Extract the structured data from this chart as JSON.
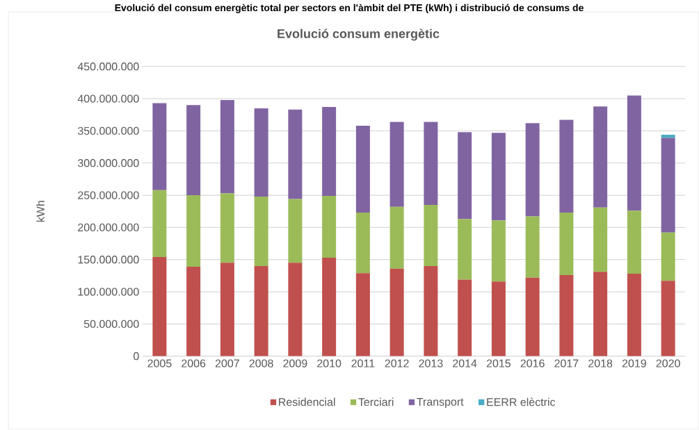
{
  "chart_data": {
    "type": "bar",
    "stacked": true,
    "title": "Evolució consum energètic",
    "ylabel": "kWh",
    "annotations": [
      "Evolució del consum energètic total per sectors en l'àmbit del PTE (kWh) i distribució de consums de"
    ],
    "categories": [
      "2005",
      "2006",
      "2007",
      "2008",
      "2009",
      "2010",
      "2011",
      "2012",
      "2013",
      "2014",
      "2015",
      "2016",
      "2017",
      "2018",
      "2019",
      "2020"
    ],
    "series": [
      {
        "name": "Residencial",
        "color": "#c0504d",
        "values": [
          154000000,
          139000000,
          145000000,
          140000000,
          145000000,
          153000000,
          129000000,
          136000000,
          140000000,
          119000000,
          116000000,
          122000000,
          126000000,
          131000000,
          128000000,
          117000000
        ]
      },
      {
        "name": "Terciari",
        "color": "#9bbb59",
        "values": [
          104000000,
          111000000,
          108000000,
          108000000,
          99000000,
          96000000,
          94000000,
          96000000,
          95000000,
          94000000,
          95000000,
          95000000,
          97000000,
          100000000,
          98000000,
          75000000
        ]
      },
      {
        "name": "Transport",
        "color": "#8064a2",
        "values": [
          135000000,
          140000000,
          145000000,
          137000000,
          139000000,
          138000000,
          135000000,
          132000000,
          129000000,
          135000000,
          136000000,
          145000000,
          144000000,
          157000000,
          179000000,
          147000000
        ]
      },
      {
        "name": "EERR elèctric",
        "color": "#4bacc6",
        "values": [
          null,
          null,
          null,
          null,
          null,
          null,
          null,
          null,
          null,
          null,
          null,
          null,
          null,
          null,
          null,
          5000000
        ]
      }
    ],
    "ylim": [
      0,
      450000000
    ],
    "yticks": [
      0,
      {
        "value": 50000000,
        "label": "50.000.000"
      },
      {
        "value": 100000000,
        "label": "100.000.000"
      },
      {
        "value": 150000000,
        "label": "150.000.000"
      },
      {
        "value": 200000000,
        "label": "200.000.000"
      },
      {
        "value": 250000000,
        "label": "250.000.000"
      },
      {
        "value": 300000000,
        "label": "300.000.000"
      },
      {
        "value": 350000000,
        "label": "350.000.000"
      },
      {
        "value": 400000000,
        "label": "400.000.000"
      },
      {
        "value": 450000000,
        "label": "450.000.000"
      }
    ],
    "grid": "y",
    "legend": "bottom"
  }
}
